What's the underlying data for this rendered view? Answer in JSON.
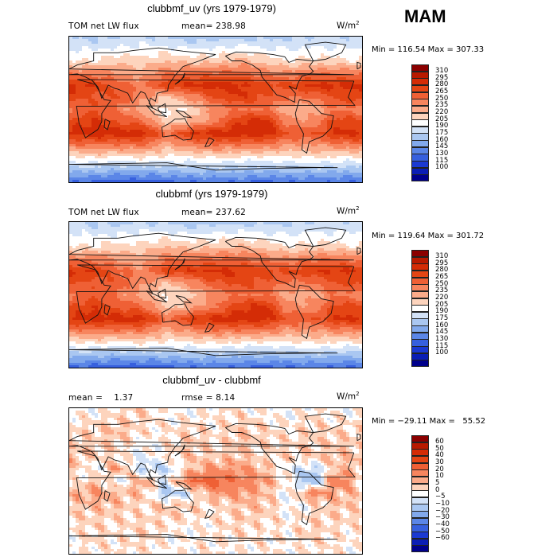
{
  "season": "MAM",
  "units_base": "W/m",
  "units_exp": "2",
  "panels": [
    {
      "title": "clubbmf_uv (yrs 1979-1979)",
      "left_text": "TOM net LW flux",
      "mid_text": "mean= 238.98",
      "minmax": "Min = 116.54 Max = 307.33",
      "kind": "abs"
    },
    {
      "title": "clubbmf (yrs 1979-1979)",
      "left_text": "TOM net LW flux",
      "mid_text": "mean= 237.62",
      "minmax": "Min = 119.64 Max = 301.72",
      "kind": "abs"
    },
    {
      "title": "clubbmf_uv - clubbmf",
      "left_text": "mean =    1.37",
      "mid_text": "rmse =    8.14",
      "minmax": "Min = −29.11 Max =   55.52",
      "kind": "diff"
    }
  ],
  "colorbars": {
    "abs": {
      "labels": [
        "310",
        "295",
        "280",
        "265",
        "250",
        "235",
        "220",
        "205",
        "190",
        "175",
        "160",
        "145",
        "130",
        "115",
        "100"
      ],
      "colors": [
        "#8b0000",
        "#b81a00",
        "#d42c06",
        "#e44514",
        "#ef6035",
        "#f7855e",
        "#fbab8a",
        "#fdd4bd",
        "#ffffff",
        "#d3e2f7",
        "#aac7f1",
        "#82a9ec",
        "#5b86e7",
        "#3760de",
        "#1b39d2",
        "#0b1eb5",
        "#00008b"
      ]
    },
    "diff": {
      "labels": [
        "60",
        "50",
        "40",
        "30",
        "20",
        "10",
        "5",
        "0",
        "−5",
        "−10",
        "−20",
        "−30",
        "−40",
        "−50",
        "−60"
      ],
      "colors": [
        "#8b0000",
        "#b81a00",
        "#d42c06",
        "#e44514",
        "#ef6035",
        "#f7855e",
        "#fbab8a",
        "#fdd4bd",
        "#ffffff",
        "#d3e2f7",
        "#aac7f1",
        "#82a9ec",
        "#5b86e7",
        "#3760de",
        "#1b39d2",
        "#0b1eb5",
        "#00008b"
      ]
    }
  },
  "chart_data": [
    {
      "type": "heatmap",
      "title": "clubbmf_uv (yrs 1979-1979)",
      "variable": "TOM net LW flux",
      "units": "W/m2",
      "mean": 238.98,
      "min": 116.54,
      "max": 307.33,
      "contour_levels": [
        100,
        115,
        130,
        145,
        160,
        175,
        190,
        205,
        220,
        235,
        250,
        265,
        280,
        295,
        310
      ],
      "x": [
        0,
        30,
        60,
        90,
        120,
        150,
        180,
        210,
        240,
        270,
        300,
        330,
        360
      ],
      "y": [
        90,
        60,
        30,
        15,
        0,
        -15,
        -30,
        -60,
        -90
      ],
      "values": [
        [
          175,
          170,
          172,
          178,
          170,
          165,
          168,
          170,
          168,
          172,
          175,
          174,
          175
        ],
        [
          205,
          205,
          215,
          210,
          220,
          215,
          215,
          225,
          215,
          205,
          210,
          210,
          205
        ],
        [
          285,
          280,
          255,
          245,
          275,
          285,
          290,
          285,
          270,
          270,
          285,
          285,
          285
        ],
        [
          275,
          260,
          265,
          240,
          215,
          240,
          265,
          280,
          265,
          250,
          250,
          270,
          275
        ],
        [
          240,
          265,
          245,
          225,
          200,
          210,
          240,
          250,
          250,
          225,
          225,
          250,
          240
        ],
        [
          270,
          280,
          265,
          255,
          210,
          225,
          245,
          280,
          290,
          240,
          240,
          275,
          270
        ],
        [
          285,
          290,
          290,
          290,
          250,
          280,
          290,
          290,
          290,
          265,
          260,
          285,
          285
        ],
        [
          200,
          205,
          200,
          205,
          200,
          200,
          205,
          200,
          200,
          200,
          205,
          200,
          200
        ],
        [
          130,
          125,
          120,
          120,
          125,
          130,
          130,
          130,
          125,
          130,
          130,
          130,
          130
        ]
      ]
    },
    {
      "type": "heatmap",
      "title": "clubbmf (yrs 1979-1979)",
      "variable": "TOM net LW flux",
      "units": "W/m2",
      "mean": 237.62,
      "min": 119.64,
      "max": 301.72,
      "contour_levels": [
        100,
        115,
        130,
        145,
        160,
        175,
        190,
        205,
        220,
        235,
        250,
        265,
        280,
        295,
        310
      ],
      "x": [
        0,
        30,
        60,
        90,
        120,
        150,
        180,
        210,
        240,
        270,
        300,
        330,
        360
      ],
      "y": [
        90,
        60,
        30,
        15,
        0,
        -15,
        -30,
        -60,
        -90
      ],
      "values": [
        [
          180,
          170,
          170,
          175,
          170,
          165,
          170,
          170,
          170,
          172,
          176,
          175,
          180
        ],
        [
          205,
          205,
          210,
          210,
          220,
          215,
          215,
          220,
          215,
          205,
          210,
          210,
          205
        ],
        [
          280,
          280,
          255,
          240,
          275,
          280,
          285,
          280,
          270,
          268,
          280,
          282,
          280
        ],
        [
          270,
          258,
          262,
          238,
          220,
          240,
          262,
          275,
          262,
          248,
          250,
          268,
          270
        ],
        [
          240,
          262,
          245,
          228,
          205,
          215,
          240,
          250,
          250,
          228,
          228,
          250,
          240
        ],
        [
          268,
          278,
          262,
          255,
          215,
          228,
          248,
          278,
          285,
          240,
          240,
          272,
          268
        ],
        [
          282,
          288,
          288,
          288,
          250,
          278,
          288,
          288,
          288,
          262,
          260,
          282,
          282
        ],
        [
          200,
          205,
          200,
          205,
          200,
          200,
          205,
          200,
          200,
          200,
          205,
          200,
          200
        ],
        [
          128,
          122,
          120,
          120,
          125,
          130,
          130,
          128,
          125,
          128,
          130,
          128,
          128
        ]
      ]
    },
    {
      "type": "heatmap",
      "title": "clubbmf_uv - clubbmf",
      "units": "W/m2",
      "mean": 1.37,
      "rmse": 8.14,
      "min": -29.11,
      "max": 55.52,
      "contour_levels": [
        -60,
        -50,
        -40,
        -30,
        -20,
        -10,
        -5,
        0,
        5,
        10,
        20,
        30,
        40,
        50,
        60
      ],
      "x": [
        0,
        30,
        60,
        90,
        120,
        150,
        180,
        210,
        240,
        270,
        300,
        330,
        360
      ],
      "y": [
        90,
        60,
        30,
        15,
        0,
        -15,
        -30,
        -60,
        -90
      ],
      "values": [
        [
          -2,
          -3,
          0,
          3,
          -2,
          -3,
          0,
          0,
          -2,
          -3,
          0,
          -2,
          -2
        ],
        [
          2,
          3,
          5,
          0,
          0,
          3,
          0,
          5,
          2,
          0,
          3,
          2,
          2
        ],
        [
          5,
          3,
          0,
          -5,
          0,
          5,
          2,
          5,
          0,
          3,
          3,
          5,
          5
        ],
        [
          5,
          -5,
          10,
          -10,
          -10,
          5,
          10,
          10,
          5,
          -5,
          -10,
          5,
          5
        ],
        [
          -3,
          5,
          -5,
          10,
          -5,
          20,
          25,
          15,
          10,
          0,
          -20,
          20,
          -3
        ],
        [
          5,
          10,
          5,
          5,
          -15,
          -5,
          10,
          10,
          5,
          -5,
          15,
          5,
          5
        ],
        [
          3,
          5,
          5,
          0,
          5,
          3,
          0,
          5,
          5,
          -3,
          0,
          5,
          3
        ],
        [
          0,
          2,
          0,
          3,
          0,
          -2,
          0,
          2,
          0,
          0,
          3,
          0,
          0
        ],
        [
          -2,
          0,
          0,
          0,
          -2,
          0,
          0,
          -2,
          0,
          -2,
          0,
          0,
          -2
        ]
      ]
    }
  ]
}
